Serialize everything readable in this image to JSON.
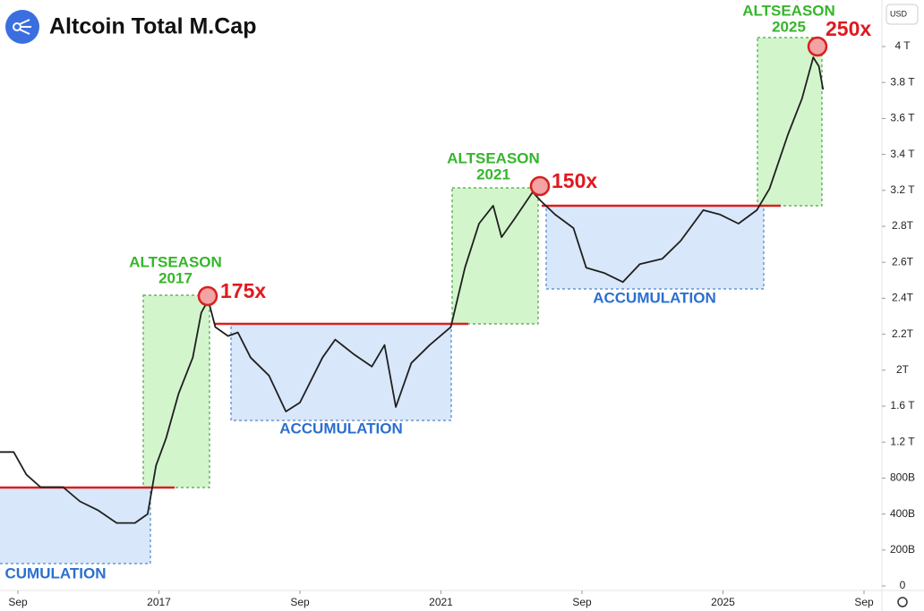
{
  "chart_data": {
    "type": "line",
    "title": "Altcoin Total M.Cap",
    "currency": "USD",
    "series": [
      {
        "name": "Altcoin Total M.Cap",
        "color": "#1f1f1f",
        "x": [
          -0.13,
          -0.03,
          0.06,
          0.16,
          0.32,
          0.44,
          0.57,
          0.7,
          0.83,
          0.92,
          0.98,
          1.05,
          1.14,
          1.24,
          1.3,
          1.35,
          1.4,
          1.49,
          1.56,
          1.65,
          1.78,
          1.9,
          2.0,
          2.16,
          2.25,
          2.38,
          2.51,
          2.6,
          2.68,
          2.79,
          2.92,
          3.07,
          3.17,
          3.27,
          3.37,
          3.43,
          3.52,
          3.65,
          3.71,
          3.81,
          3.94,
          4.03,
          4.16,
          4.29,
          4.41,
          4.57,
          4.7,
          4.86,
          4.98,
          5.11,
          5.24,
          5.33,
          5.46,
          5.56,
          5.64,
          5.68,
          5.71
        ],
        "values": [
          1.09,
          1.09,
          0.84,
          0.7,
          0.7,
          0.54,
          0.44,
          0.35,
          0.35,
          0.4,
          0.94,
          1.24,
          1.74,
          2.07,
          2.32,
          2.39,
          2.24,
          2.19,
          2.21,
          2.07,
          1.94,
          1.54,
          1.64,
          2.07,
          2.17,
          2.09,
          2.02,
          2.14,
          1.59,
          2.04,
          2.14,
          2.24,
          2.57,
          2.83,
          3.03,
          2.74,
          2.88,
          3.18,
          3.08,
          2.93,
          2.79,
          2.57,
          2.54,
          2.49,
          2.59,
          2.62,
          2.72,
          2.98,
          2.93,
          2.83,
          2.98,
          3.21,
          3.51,
          3.71,
          3.94,
          3.89,
          3.76
        ]
      }
    ],
    "xlim": [
      -0.13,
      6.13
    ],
    "xticks": [
      {
        "value": 0,
        "label": "Sep"
      },
      {
        "value": 1,
        "label": "2017"
      },
      {
        "value": 2,
        "label": "Sep"
      },
      {
        "value": 3,
        "label": "2021"
      },
      {
        "value": 4,
        "label": "Sep"
      },
      {
        "value": 5,
        "label": "2025"
      },
      {
        "value": 6,
        "label": "Sep"
      }
    ],
    "ylim": [
      0,
      4.2
    ],
    "yticks": [
      0,
      {
        "value": 0.2,
        "label": "200B"
      },
      {
        "value": 0.4,
        "label": "400B"
      },
      {
        "value": 0.8,
        "label": "800B"
      },
      {
        "value": 1.2,
        "label": "1.2 T"
      },
      {
        "value": 1.6,
        "label": "1.6 T"
      },
      {
        "value": 2,
        "label": "2T"
      },
      {
        "value": 2.2,
        "label": "2.2T"
      },
      {
        "value": 2.4,
        "label": "2.4T"
      },
      {
        "value": 2.6,
        "label": "2.6T"
      },
      {
        "value": 2.8,
        "label": "2.8T"
      },
      {
        "value": 3.2,
        "label": "3.2 T"
      },
      {
        "value": 3.4,
        "label": "3.4 T"
      },
      {
        "value": 3.6,
        "label": "3.6 T"
      },
      {
        "value": 3.8,
        "label": "3.8 T"
      },
      {
        "value": 4,
        "label": "4 T"
      }
    ],
    "annotations": {
      "accumulation_1": "CUMULATION",
      "altseason_2017": [
        "ALTSEASON",
        "2017"
      ],
      "multiple_2017": "175x",
      "accumulation_2": "ACCUMULATION",
      "altseason_2021": [
        "ALTSEASON",
        "2021"
      ],
      "multiple_2021": "150x",
      "accumulation_3": "ACCUMULATION",
      "altseason_2025": [
        "ALTSEASON",
        "2025"
      ],
      "multiple_2025": "250x"
    }
  }
}
